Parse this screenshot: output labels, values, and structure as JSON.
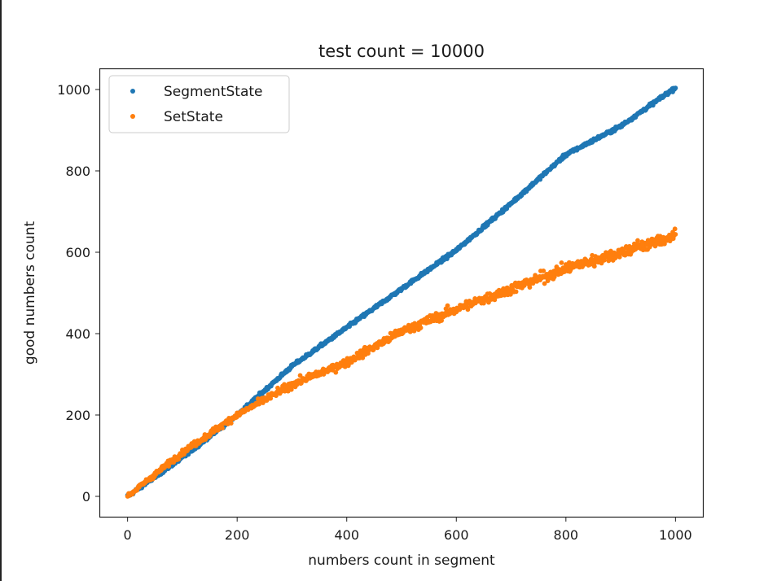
{
  "chart_data": {
    "type": "scatter",
    "title": "test count = 10000",
    "xlabel": "numbers count in segment",
    "ylabel": "good numbers count",
    "xlim": [
      -50,
      1050
    ],
    "ylim": [
      -50,
      1050
    ],
    "xticks": [
      0,
      200,
      400,
      600,
      800,
      1000
    ],
    "yticks": [
      0,
      200,
      400,
      600,
      800,
      1000
    ],
    "legend_position": "top-left",
    "grid": false,
    "series": [
      {
        "name": "SegmentState",
        "color": "#1f77b4",
        "x_range": [
          0,
          1000
        ],
        "curve_x": [
          0,
          100,
          200,
          300,
          400,
          500,
          600,
          700,
          800,
          900,
          1000
        ],
        "curve_y": [
          0,
          95,
          200,
          320,
          415,
          510,
          605,
          720,
          840,
          910,
          1005
        ],
        "noise": 4
      },
      {
        "name": "SetState",
        "color": "#ff7f0e",
        "x_range": [
          0,
          1000
        ],
        "curve_x": [
          0,
          100,
          200,
          300,
          400,
          500,
          600,
          700,
          800,
          900,
          1000
        ],
        "curve_y": [
          0,
          108,
          200,
          275,
          330,
          405,
          460,
          510,
          560,
          600,
          640
        ],
        "noise": 16
      }
    ]
  }
}
